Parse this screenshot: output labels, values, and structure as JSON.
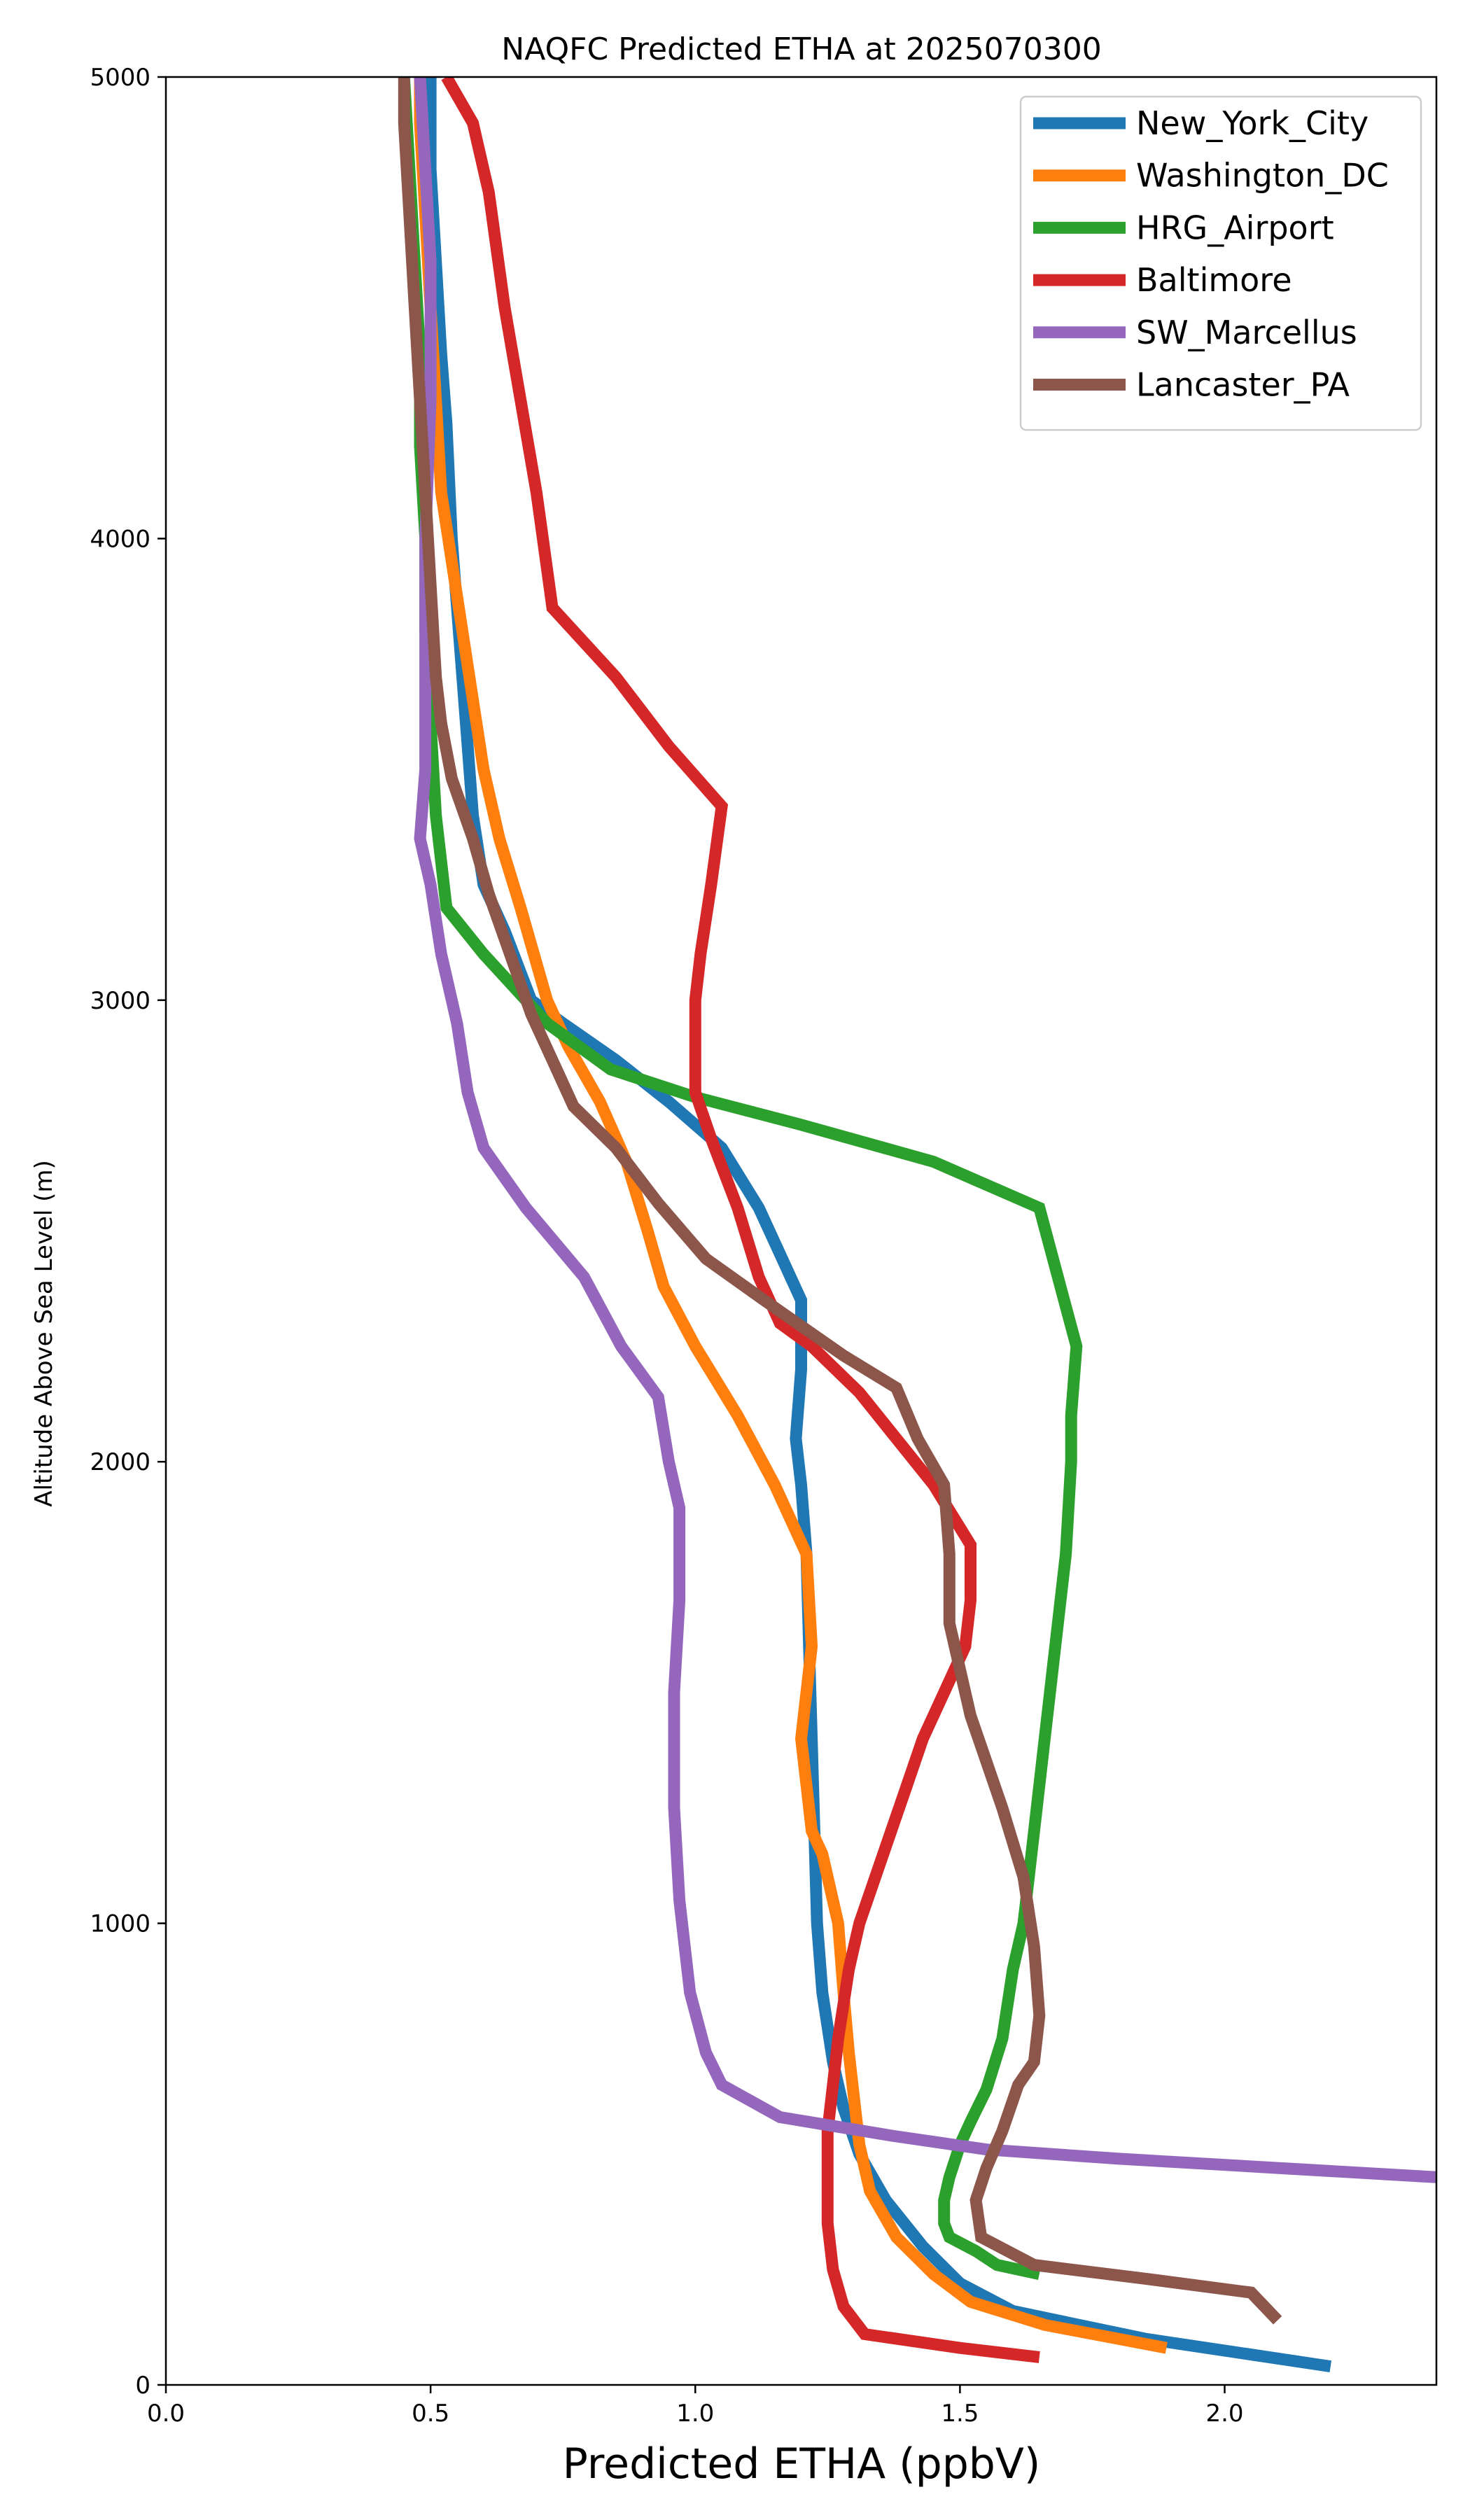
{
  "chart_data": {
    "type": "line",
    "title": "NAQFC Predicted ETHA at 2025070300",
    "xlabel": "Predicted ETHA (ppbV)",
    "ylabel": "Altitude Above Sea Level (m)",
    "xlim": [
      0.0,
      2.4
    ],
    "ylim": [
      0,
      5000
    ],
    "xticks": [
      "0.0",
      "0.5",
      "1.0",
      "1.5",
      "2.0"
    ],
    "yticks": [
      "0",
      "1000",
      "2000",
      "3000",
      "4000",
      "5000"
    ],
    "grid": false,
    "legend_position": "top-right",
    "series": [
      {
        "name": "New_York_City",
        "color": "#1f77b4",
        "points": [
          [
            2.2,
            40
          ],
          [
            1.85,
            100
          ],
          [
            1.6,
            160
          ],
          [
            1.5,
            220
          ],
          [
            1.43,
            300
          ],
          [
            1.36,
            400
          ],
          [
            1.31,
            500
          ],
          [
            1.28,
            600
          ],
          [
            1.26,
            700
          ],
          [
            1.24,
            850
          ],
          [
            1.23,
            1000
          ],
          [
            1.225,
            1200
          ],
          [
            1.22,
            1400
          ],
          [
            1.215,
            1600
          ],
          [
            1.21,
            1800
          ],
          [
            1.2,
            1950
          ],
          [
            1.19,
            2050
          ],
          [
            1.2,
            2200
          ],
          [
            1.2,
            2350
          ],
          [
            1.16,
            2450
          ],
          [
            1.12,
            2550
          ],
          [
            1.05,
            2680
          ],
          [
            0.95,
            2780
          ],
          [
            0.85,
            2870
          ],
          [
            0.75,
            2950
          ],
          [
            0.69,
            3000
          ],
          [
            0.64,
            3150
          ],
          [
            0.6,
            3250
          ],
          [
            0.58,
            3400
          ],
          [
            0.57,
            3550
          ],
          [
            0.56,
            3700
          ],
          [
            0.55,
            3850
          ],
          [
            0.54,
            4000
          ],
          [
            0.53,
            4250
          ],
          [
            0.52,
            4400
          ],
          [
            0.51,
            4600
          ],
          [
            0.5,
            4800
          ],
          [
            0.5,
            5000
          ]
        ]
      },
      {
        "name": "Washington_DC",
        "color": "#ff7f0e",
        "points": [
          [
            1.89,
            80
          ],
          [
            1.66,
            130
          ],
          [
            1.52,
            180
          ],
          [
            1.45,
            240
          ],
          [
            1.38,
            320
          ],
          [
            1.33,
            420
          ],
          [
            1.31,
            520
          ],
          [
            1.3,
            620
          ],
          [
            1.29,
            720
          ],
          [
            1.28,
            850
          ],
          [
            1.27,
            1000
          ],
          [
            1.24,
            1150
          ],
          [
            1.22,
            1200
          ],
          [
            1.2,
            1400
          ],
          [
            1.22,
            1600
          ],
          [
            1.21,
            1800
          ],
          [
            1.15,
            1950
          ],
          [
            1.08,
            2100
          ],
          [
            1.0,
            2250
          ],
          [
            0.94,
            2380
          ],
          [
            0.91,
            2500
          ],
          [
            0.87,
            2650
          ],
          [
            0.82,
            2780
          ],
          [
            0.76,
            2900
          ],
          [
            0.72,
            3000
          ],
          [
            0.67,
            3200
          ],
          [
            0.63,
            3350
          ],
          [
            0.6,
            3500
          ],
          [
            0.58,
            3650
          ],
          [
            0.56,
            3800
          ],
          [
            0.54,
            3950
          ],
          [
            0.52,
            4100
          ],
          [
            0.51,
            4300
          ],
          [
            0.5,
            4500
          ],
          [
            0.49,
            4700
          ],
          [
            0.48,
            4900
          ],
          [
            0.48,
            5000
          ]
        ]
      },
      {
        "name": "HRG_Airport",
        "color": "#2ca02c",
        "points": [
          [
            1.65,
            240
          ],
          [
            1.57,
            260
          ],
          [
            1.53,
            290
          ],
          [
            1.48,
            320
          ],
          [
            1.47,
            350
          ],
          [
            1.47,
            400
          ],
          [
            1.48,
            450
          ],
          [
            1.5,
            520
          ],
          [
            1.52,
            570
          ],
          [
            1.55,
            640
          ],
          [
            1.58,
            750
          ],
          [
            1.6,
            900
          ],
          [
            1.62,
            1000
          ],
          [
            1.64,
            1200
          ],
          [
            1.66,
            1400
          ],
          [
            1.68,
            1600
          ],
          [
            1.7,
            1800
          ],
          [
            1.71,
            2000
          ],
          [
            1.71,
            2100
          ],
          [
            1.72,
            2250
          ],
          [
            1.65,
            2550
          ],
          [
            1.45,
            2650
          ],
          [
            1.2,
            2730
          ],
          [
            1.0,
            2790
          ],
          [
            0.84,
            2850
          ],
          [
            0.72,
            2950
          ],
          [
            0.6,
            3100
          ],
          [
            0.53,
            3200
          ],
          [
            0.51,
            3400
          ],
          [
            0.5,
            3600
          ],
          [
            0.49,
            3800
          ],
          [
            0.49,
            4000
          ],
          [
            0.48,
            4200
          ],
          [
            0.48,
            4400
          ],
          [
            0.47,
            4600
          ],
          [
            0.46,
            4800
          ],
          [
            0.45,
            5000
          ]
        ]
      },
      {
        "name": "Baltimore",
        "color": "#d62728",
        "points": [
          [
            1.65,
            60
          ],
          [
            1.5,
            80
          ],
          [
            1.32,
            110
          ],
          [
            1.28,
            170
          ],
          [
            1.26,
            250
          ],
          [
            1.25,
            350
          ],
          [
            1.25,
            450
          ],
          [
            1.25,
            550
          ],
          [
            1.26,
            650
          ],
          [
            1.27,
            750
          ],
          [
            1.29,
            900
          ],
          [
            1.31,
            1000
          ],
          [
            1.34,
            1100
          ],
          [
            1.37,
            1200
          ],
          [
            1.4,
            1300
          ],
          [
            1.43,
            1400
          ],
          [
            1.47,
            1500
          ],
          [
            1.51,
            1600
          ],
          [
            1.52,
            1700
          ],
          [
            1.52,
            1820
          ],
          [
            1.45,
            1950
          ],
          [
            1.38,
            2050
          ],
          [
            1.31,
            2150
          ],
          [
            1.22,
            2250
          ],
          [
            1.16,
            2300
          ],
          [
            1.12,
            2400
          ],
          [
            1.08,
            2550
          ],
          [
            1.03,
            2700
          ],
          [
            1.0,
            2800
          ],
          [
            1.0,
            3000
          ],
          [
            1.01,
            3100
          ],
          [
            1.03,
            3250
          ],
          [
            1.05,
            3420
          ],
          [
            0.95,
            3550
          ],
          [
            0.85,
            3700
          ],
          [
            0.73,
            3850
          ],
          [
            0.7,
            4100
          ],
          [
            0.67,
            4300
          ],
          [
            0.64,
            4500
          ],
          [
            0.61,
            4750
          ],
          [
            0.58,
            4900
          ],
          [
            0.53,
            5000
          ]
        ]
      },
      {
        "name": "SW_Marcellus",
        "color": "#9467bd",
        "points": [
          [
            2.4,
            450
          ],
          [
            2.1,
            470
          ],
          [
            1.8,
            490
          ],
          [
            1.55,
            510
          ],
          [
            1.37,
            540
          ],
          [
            1.16,
            580
          ],
          [
            1.05,
            650
          ],
          [
            1.02,
            720
          ],
          [
            0.99,
            850
          ],
          [
            0.97,
            1050
          ],
          [
            0.96,
            1250
          ],
          [
            0.96,
            1500
          ],
          [
            0.97,
            1700
          ],
          [
            0.97,
            1900
          ],
          [
            0.95,
            2000
          ],
          [
            0.93,
            2140
          ],
          [
            0.86,
            2250
          ],
          [
            0.79,
            2400
          ],
          [
            0.68,
            2550
          ],
          [
            0.6,
            2680
          ],
          [
            0.57,
            2800
          ],
          [
            0.55,
            2950
          ],
          [
            0.52,
            3100
          ],
          [
            0.5,
            3250
          ],
          [
            0.48,
            3350
          ],
          [
            0.49,
            3500
          ],
          [
            0.49,
            3700
          ],
          [
            0.49,
            4000
          ],
          [
            0.5,
            4300
          ],
          [
            0.5,
            4600
          ],
          [
            0.49,
            4800
          ],
          [
            0.48,
            5000
          ]
        ]
      },
      {
        "name": "Lancaster_PA",
        "color": "#8c564b",
        "points": [
          [
            2.1,
            140
          ],
          [
            2.05,
            200
          ],
          [
            1.85,
            230
          ],
          [
            1.64,
            260
          ],
          [
            1.54,
            320
          ],
          [
            1.53,
            400
          ],
          [
            1.55,
            470
          ],
          [
            1.58,
            550
          ],
          [
            1.61,
            650
          ],
          [
            1.64,
            700
          ],
          [
            1.65,
            800
          ],
          [
            1.64,
            950
          ],
          [
            1.62,
            1100
          ],
          [
            1.58,
            1250
          ],
          [
            1.52,
            1450
          ],
          [
            1.48,
            1650
          ],
          [
            1.48,
            1800
          ],
          [
            1.47,
            1950
          ],
          [
            1.42,
            2050
          ],
          [
            1.38,
            2160
          ],
          [
            1.28,
            2230
          ],
          [
            1.13,
            2350
          ],
          [
            1.02,
            2440
          ],
          [
            0.93,
            2560
          ],
          [
            0.85,
            2680
          ],
          [
            0.77,
            2770
          ],
          [
            0.73,
            2870
          ],
          [
            0.69,
            2970
          ],
          [
            0.65,
            3100
          ],
          [
            0.61,
            3230
          ],
          [
            0.58,
            3350
          ],
          [
            0.54,
            3480
          ],
          [
            0.52,
            3600
          ],
          [
            0.51,
            3700
          ],
          [
            0.5,
            3900
          ],
          [
            0.49,
            4100
          ],
          [
            0.48,
            4300
          ],
          [
            0.47,
            4500
          ],
          [
            0.46,
            4700
          ],
          [
            0.45,
            4900
          ],
          [
            0.45,
            5000
          ]
        ]
      }
    ]
  }
}
